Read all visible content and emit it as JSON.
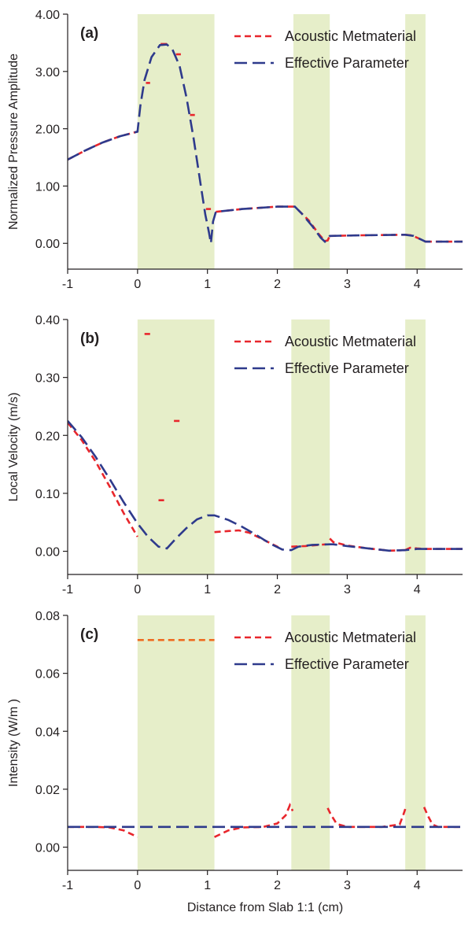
{
  "chart_data": [
    {
      "type": "line",
      "panel_label": "(a)",
      "ylabel": "Normalized Pressure Amplitude",
      "xlabel": "",
      "xlim": [
        -1,
        4.65
      ],
      "ylim": [
        -0.45,
        4.0
      ],
      "x_ticks": [
        -1,
        0,
        1,
        2,
        3,
        4
      ],
      "x_tick_labels": [
        "-1",
        "0",
        "1",
        "2",
        "3",
        "4"
      ],
      "y_ticks": [
        0,
        1,
        2,
        3,
        4
      ],
      "y_tick_labels": [
        "0.00",
        "1.00",
        "2.00",
        "3.00",
        "4.00"
      ],
      "shaded_regions": [
        [
          0,
          1.1
        ],
        [
          2.23,
          2.75
        ],
        [
          3.83,
          4.12
        ]
      ],
      "shade_color": "#e6eec9",
      "legend_position": "top-right",
      "series": [
        {
          "name": "Acoustic Metmaterial",
          "color": "#e8262c",
          "style": "short-dash",
          "segments": [
            [
              [
                -1,
                1.46
              ],
              [
                -0.75,
                1.62
              ],
              [
                -0.5,
                1.76
              ],
              [
                -0.25,
                1.87
              ],
              [
                0,
                1.95
              ]
            ],
            [
              [
                0.12,
                2.8
              ],
              [
                0.18,
                2.8
              ]
            ],
            [
              [
                0.33,
                3.48
              ],
              [
                0.45,
                3.48
              ]
            ],
            [
              [
                0.55,
                3.3
              ],
              [
                0.62,
                3.3
              ]
            ],
            [
              [
                0.75,
                2.24
              ],
              [
                0.82,
                2.24
              ]
            ],
            [
              [
                0.98,
                0.6
              ],
              [
                1.05,
                0.6
              ]
            ],
            [
              [
                1.12,
                0.55
              ],
              [
                1.5,
                0.6
              ],
              [
                2.0,
                0.64
              ],
              [
                2.25,
                0.64
              ]
            ],
            [
              [
                2.3,
                0.58
              ],
              [
                2.45,
                0.4
              ],
              [
                2.6,
                0.15
              ],
              [
                2.68,
                0.04
              ],
              [
                2.72,
                0.05
              ],
              [
                2.75,
                0.13
              ]
            ],
            [
              [
                2.75,
                0.13
              ],
              [
                3.2,
                0.14
              ],
              [
                3.83,
                0.15
              ]
            ],
            [
              [
                3.83,
                0.15
              ],
              [
                3.92,
                0.14
              ],
              [
                4.0,
                0.1
              ],
              [
                4.12,
                0.03
              ]
            ],
            [
              [
                4.12,
                0.03
              ],
              [
                4.65,
                0.03
              ]
            ]
          ]
        },
        {
          "name": "Effective Parameter",
          "color": "#2e3a8c",
          "style": "long-dash",
          "segments": [
            [
              [
                -1,
                1.46
              ],
              [
                -0.75,
                1.62
              ],
              [
                -0.5,
                1.76
              ],
              [
                -0.25,
                1.87
              ],
              [
                0,
                1.95
              ],
              [
                0.04,
                2.4
              ],
              [
                0.1,
                2.85
              ],
              [
                0.2,
                3.25
              ],
              [
                0.32,
                3.46
              ],
              [
                0.42,
                3.47
              ],
              [
                0.5,
                3.38
              ],
              [
                0.6,
                3.1
              ],
              [
                0.7,
                2.55
              ],
              [
                0.8,
                1.85
              ],
              [
                0.9,
                1.05
              ],
              [
                0.97,
                0.5
              ],
              [
                1.02,
                0.2
              ],
              [
                1.05,
                0.0
              ],
              [
                1.08,
                0.38
              ],
              [
                1.12,
                0.55
              ],
              [
                1.5,
                0.6
              ],
              [
                2.0,
                0.64
              ],
              [
                2.25,
                0.64
              ],
              [
                2.35,
                0.52
              ],
              [
                2.5,
                0.3
              ],
              [
                2.62,
                0.1
              ],
              [
                2.68,
                0.03
              ],
              [
                2.75,
                0.13
              ],
              [
                3.2,
                0.14
              ],
              [
                3.83,
                0.15
              ],
              [
                3.95,
                0.13
              ],
              [
                4.05,
                0.07
              ],
              [
                4.12,
                0.03
              ],
              [
                4.65,
                0.03
              ]
            ]
          ]
        }
      ]
    },
    {
      "type": "line",
      "panel_label": "(b)",
      "ylabel": "Local Velocity (m/s)",
      "xlabel": "",
      "xlim": [
        -1,
        4.65
      ],
      "ylim": [
        -0.04,
        0.4
      ],
      "x_ticks": [
        -1,
        0,
        1,
        2,
        3,
        4
      ],
      "x_tick_labels": [
        "-1",
        "0",
        "1",
        "2",
        "3",
        "4"
      ],
      "y_ticks": [
        0,
        0.1,
        0.2,
        0.3,
        0.4
      ],
      "y_tick_labels": [
        "0.00",
        "0.10",
        "0.20",
        "0.30",
        "0.40"
      ],
      "shaded_regions": [
        [
          0,
          1.1
        ],
        [
          2.2,
          2.75
        ],
        [
          3.83,
          4.12
        ]
      ],
      "shade_color": "#e6eec9",
      "legend_position": "top-right",
      "series": [
        {
          "name": "Acoustic Metmaterial",
          "color": "#e8262c",
          "style": "short-dash",
          "segments": [
            [
              [
                -1,
                0.222
              ],
              [
                -0.8,
                0.192
              ],
              [
                -0.6,
                0.155
              ],
              [
                -0.4,
                0.112
              ],
              [
                -0.2,
                0.066
              ],
              [
                0,
                0.025
              ]
            ],
            [
              [
                0.1,
                0.375
              ],
              [
                0.18,
                0.375
              ]
            ],
            [
              [
                0.3,
                0.088
              ],
              [
                0.38,
                0.088
              ]
            ],
            [
              [
                0.52,
                0.225
              ],
              [
                0.6,
                0.225
              ]
            ],
            [
              [
                1.1,
                0.033
              ],
              [
                1.3,
                0.035
              ],
              [
                1.45,
                0.036
              ],
              [
                1.6,
                0.032
              ],
              [
                1.8,
                0.02
              ],
              [
                2.0,
                0.008
              ],
              [
                2.07,
                0.003
              ]
            ],
            [
              [
                2.2,
                0.008
              ],
              [
                2.4,
                0.009
              ],
              [
                2.6,
                0.011
              ],
              [
                2.7,
                0.012
              ]
            ],
            [
              [
                2.75,
                0.022
              ],
              [
                2.8,
                0.016
              ],
              [
                3.0,
                0.01
              ],
              [
                3.3,
                0.005
              ],
              [
                3.6,
                0.001
              ],
              [
                3.83,
                0.002
              ]
            ],
            [
              [
                3.83,
                0.002
              ],
              [
                3.9,
                0.006
              ],
              [
                4.0,
                0.005
              ],
              [
                4.12,
                0.004
              ]
            ],
            [
              [
                4.12,
                0.004
              ],
              [
                4.65,
                0.004
              ]
            ]
          ]
        },
        {
          "name": "Effective Parameter",
          "color": "#2e3a8c",
          "style": "long-dash",
          "segments": [
            [
              [
                -1,
                0.225
              ],
              [
                -0.8,
                0.197
              ],
              [
                -0.6,
                0.163
              ],
              [
                -0.4,
                0.125
              ],
              [
                -0.2,
                0.085
              ],
              [
                0,
                0.048
              ],
              [
                0.15,
                0.025
              ],
              [
                0.3,
                0.008
              ],
              [
                0.42,
                0.005
              ],
              [
                0.55,
                0.022
              ],
              [
                0.7,
                0.04
              ],
              [
                0.85,
                0.055
              ],
              [
                1.0,
                0.062
              ],
              [
                1.1,
                0.062
              ],
              [
                1.3,
                0.054
              ],
              [
                1.5,
                0.042
              ],
              [
                1.7,
                0.028
              ],
              [
                1.9,
                0.013
              ],
              [
                2.07,
                0.003
              ],
              [
                2.2,
                0.002
              ],
              [
                2.3,
                0.008
              ],
              [
                2.5,
                0.011
              ],
              [
                2.75,
                0.012
              ],
              [
                2.8,
                0.012
              ],
              [
                3.0,
                0.009
              ],
              [
                3.3,
                0.005
              ],
              [
                3.6,
                0.001
              ],
              [
                3.83,
                0.002
              ],
              [
                4.0,
                0.004
              ],
              [
                4.12,
                0.004
              ],
              [
                4.65,
                0.004
              ]
            ]
          ]
        }
      ]
    },
    {
      "type": "line",
      "panel_label": "(c)",
      "ylabel": "Intensity (W/m )",
      "xlabel": "Distance from Slab 1:1 (cm)",
      "xlim": [
        -1,
        4.65
      ],
      "ylim": [
        -0.008,
        0.08
      ],
      "x_ticks": [
        -1,
        0,
        1,
        2,
        3,
        4
      ],
      "x_tick_labels": [
        "-1",
        "0",
        "1",
        "2",
        "3",
        "4"
      ],
      "y_ticks": [
        0,
        0.02,
        0.04,
        0.06,
        0.08
      ],
      "y_tick_labels": [
        "0.00",
        "0.02",
        "0.04",
        "0.06",
        "0.08"
      ],
      "shaded_regions": [
        [
          0,
          1.1
        ],
        [
          2.2,
          2.75
        ],
        [
          3.83,
          4.12
        ]
      ],
      "shade_color": "#e6eec9",
      "legend_position": "top-right",
      "series": [
        {
          "name": "Acoustic Metmaterial",
          "color": "#e8262c",
          "style": "short-dash",
          "segments": [
            [
              [
                -1,
                0.007
              ],
              [
                -0.6,
                0.007
              ],
              [
                -0.4,
                0.0068
              ],
              [
                -0.2,
                0.0058
              ],
              [
                0,
                0.0035
              ]
            ],
            [
              [
                1.1,
                0.0035
              ],
              [
                1.3,
                0.0058
              ],
              [
                1.5,
                0.0068
              ],
              [
                1.8,
                0.007
              ],
              [
                2.0,
                0.0082
              ],
              [
                2.12,
                0.011
              ],
              [
                2.18,
                0.0145
              ],
              [
                2.22,
                0.0125
              ]
            ],
            [
              [
                2.72,
                0.0135
              ],
              [
                2.76,
                0.0115
              ],
              [
                2.85,
                0.008
              ],
              [
                3.0,
                0.007
              ],
              [
                3.5,
                0.007
              ],
              [
                3.75,
                0.0078
              ],
              [
                3.8,
                0.011
              ],
              [
                3.84,
                0.0138
              ]
            ],
            [
              [
                4.1,
                0.0138
              ],
              [
                4.15,
                0.011
              ],
              [
                4.22,
                0.0078
              ],
              [
                4.3,
                0.007
              ],
              [
                4.65,
                0.007
              ]
            ]
          ]
        },
        {
          "name": "",
          "color": "#ef6b1f",
          "style": "short-dash",
          "segments": [
            [
              [
                0.0,
                0.0715
              ],
              [
                1.1,
                0.0715
              ]
            ]
          ]
        },
        {
          "name": "Effective Parameter",
          "color": "#2e3a8c",
          "style": "long-dash",
          "segments": [
            [
              [
                -1,
                0.007
              ],
              [
                4.65,
                0.007
              ]
            ]
          ]
        }
      ]
    }
  ]
}
